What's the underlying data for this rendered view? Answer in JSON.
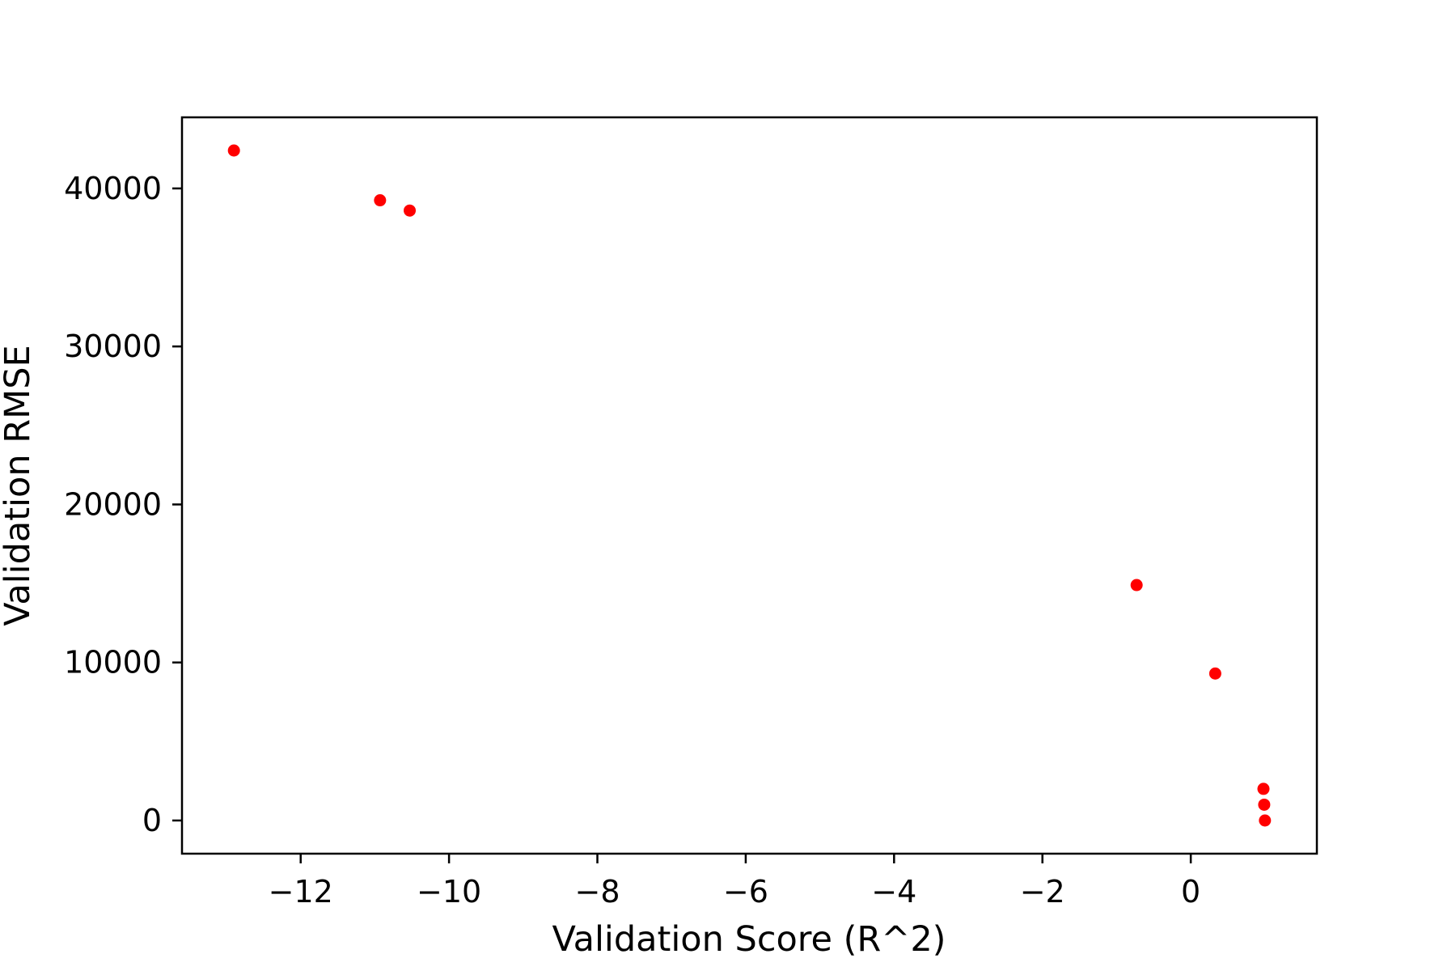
{
  "chart_data": {
    "type": "scatter",
    "xlabel": "Validation Score (R^2)",
    "ylabel": "Validation RMSE",
    "xlim": [
      -13.6,
      1.7
    ],
    "ylim": [
      -2100,
      44500
    ],
    "x_ticks": [
      -12,
      -10,
      -8,
      -6,
      -4,
      -2,
      0
    ],
    "x_tick_labels": [
      "−12",
      "−10",
      "−8",
      "−6",
      "−4",
      "−2",
      "0"
    ],
    "y_ticks": [
      0,
      10000,
      20000,
      30000,
      40000
    ],
    "y_tick_labels": [
      "0",
      "10000",
      "20000",
      "30000",
      "40000"
    ],
    "grid": false,
    "marker_color": "#ff0000",
    "series": [
      {
        "points": [
          {
            "x": -12.9,
            "y": 42400
          },
          {
            "x": -10.93,
            "y": 39250
          },
          {
            "x": -10.53,
            "y": 38600
          },
          {
            "x": -0.73,
            "y": 14900
          },
          {
            "x": 0.33,
            "y": 9300
          },
          {
            "x": 0.98,
            "y": 2000
          },
          {
            "x": 0.99,
            "y": 1000
          },
          {
            "x": 1.0,
            "y": 0
          }
        ]
      }
    ]
  }
}
